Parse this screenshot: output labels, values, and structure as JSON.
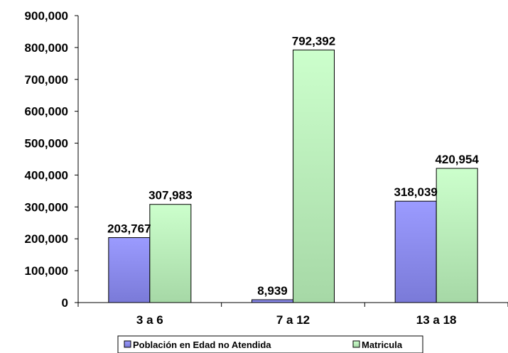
{
  "chart_data": {
    "type": "bar",
    "categories": [
      "3 a 6",
      "7 a 12",
      "13 a 18"
    ],
    "series": [
      {
        "name": "Población en Edad no Atendida",
        "values": [
          203767,
          8939,
          318039
        ],
        "labels": [
          "203,767",
          "8,939",
          "318,039"
        ]
      },
      {
        "name": "Matricula",
        "values": [
          307983,
          792392,
          420954
        ],
        "labels": [
          "307,983",
          "792,392",
          "420,954"
        ]
      }
    ],
    "ylim": [
      0,
      900000
    ],
    "yticks": [
      0,
      100000,
      200000,
      300000,
      400000,
      500000,
      600000,
      700000,
      800000,
      900000
    ],
    "ytick_labels": [
      "0",
      "100,000",
      "200,000",
      "300,000",
      "400,000",
      "500,000",
      "600,000",
      "700,000",
      "800,000",
      "900,000"
    ],
    "grid": false,
    "legend": "bottom",
    "colors": {
      "series0_top": "#9b9bff",
      "series0_bottom": "#7a7ad8",
      "series1_top": "#ccffcc",
      "series1_bottom": "#a6d8a6",
      "axis": "#000000"
    }
  }
}
